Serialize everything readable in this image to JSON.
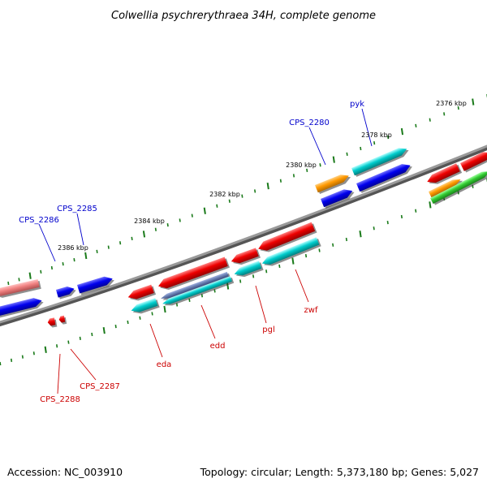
{
  "title": "Colwellia psychrerythraea 34H, complete genome",
  "footer": {
    "accession": "Accession: NC_003910",
    "stats": "Topology: circular; Length: 5,373,180 bp; Genes: 5,027"
  },
  "scale_labels": [
    "2376 kbp",
    "2378 kbp",
    "2380 kbp",
    "2382 kbp",
    "2384 kbp",
    "2386 kbp"
  ],
  "forward_gene_labels": [
    "pyk",
    "CPS_2280",
    "CPS_2285",
    "CPS_2286"
  ],
  "reverse_gene_labels": [
    "zwf",
    "pgl",
    "edd",
    "eda",
    "CPS_2287",
    "CPS_2288"
  ],
  "colors": {
    "backbone": "#808080",
    "forward_gene": "#0000ff",
    "reverse_gene": "#ff0000",
    "cog_cyan": "#00cccc",
    "cog_orange": "#ff9900",
    "cog_green": "#33cc33",
    "cog_pink": "#f08080",
    "cog_slate": "#6a7fb0",
    "tick": "#1a7a1a",
    "forward_label": "#0000cc",
    "reverse_label": "#cc0000"
  }
}
